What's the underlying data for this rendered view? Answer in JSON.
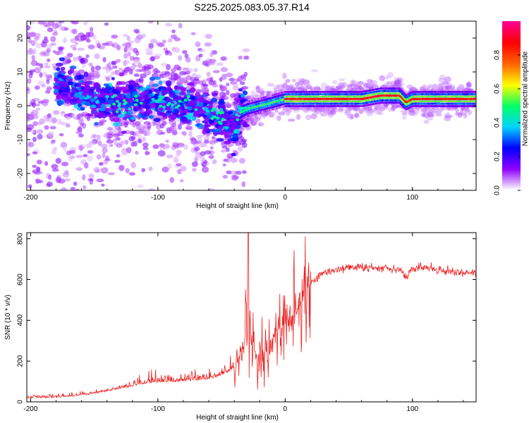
{
  "title": "S225.2025.083.05.37.R14",
  "chart_data": [
    {
      "type": "heatmap",
      "xlabel": "Height of straight line (km)",
      "ylabel": "Frequency (Hz)",
      "xlim": [
        -203,
        150
      ],
      "ylim": [
        -25,
        25
      ],
      "x_ticks": [
        -200,
        -100,
        0,
        100
      ],
      "y_ticks": [
        -20,
        -10,
        0,
        10,
        20
      ],
      "colorbar": {
        "label": "Normalized spectral amplitude",
        "range": [
          0,
          1
        ],
        "ticks": [
          "0.0",
          "0.2",
          "0.4",
          "0.6",
          "0.8"
        ],
        "colors": [
          "#ffffff",
          "#8f00ff",
          "#0000ff",
          "#00d4ff",
          "#00ff66",
          "#ffff00",
          "#ff6600",
          "#ff0000",
          "#ff0090"
        ]
      },
      "ridge": {
        "x": [
          -175,
          -160,
          -150,
          -140,
          -130,
          -120,
          -110,
          -100,
          -90,
          -80,
          -70,
          -60,
          -50,
          -40,
          -35,
          -30,
          -20,
          -10,
          0,
          10,
          30,
          60,
          75,
          90,
          95,
          100,
          110,
          130,
          150
        ],
        "y": [
          6,
          4,
          2,
          2,
          1,
          1,
          1,
          2,
          1,
          0,
          0,
          -2,
          -4,
          -7,
          -2,
          -1,
          0,
          1,
          2,
          2,
          2,
          2,
          3,
          3,
          1,
          2,
          2,
          2,
          2
        ]
      }
    },
    {
      "type": "line",
      "xlabel": "Height of straight line (km)",
      "ylabel": "SNR (10 * v/v)",
      "xlim": [
        -203,
        150
      ],
      "ylim": [
        0,
        830
      ],
      "x_ticks": [
        -200,
        -100,
        0,
        100
      ],
      "y_ticks": [
        0,
        200,
        400,
        600,
        800
      ],
      "color": "#ee2222",
      "series": {
        "x": [
          -203,
          -180,
          -160,
          -140,
          -125,
          -110,
          -100,
          -80,
          -60,
          -50,
          -40,
          -34,
          -31,
          -28,
          -25,
          -20,
          -15,
          -10,
          -5,
          0,
          5,
          10,
          15,
          20,
          25,
          30,
          40,
          50,
          60,
          70,
          80,
          90,
          95,
          100,
          105,
          110,
          130,
          150
        ],
        "y": [
          18,
          20,
          30,
          50,
          70,
          90,
          95,
          100,
          110,
          130,
          160,
          250,
          300,
          320,
          260,
          200,
          250,
          300,
          350,
          380,
          420,
          450,
          540,
          580,
          610,
          630,
          650,
          660,
          660,
          655,
          660,
          650,
          610,
          650,
          660,
          660,
          640,
          630
        ]
      }
    }
  ]
}
